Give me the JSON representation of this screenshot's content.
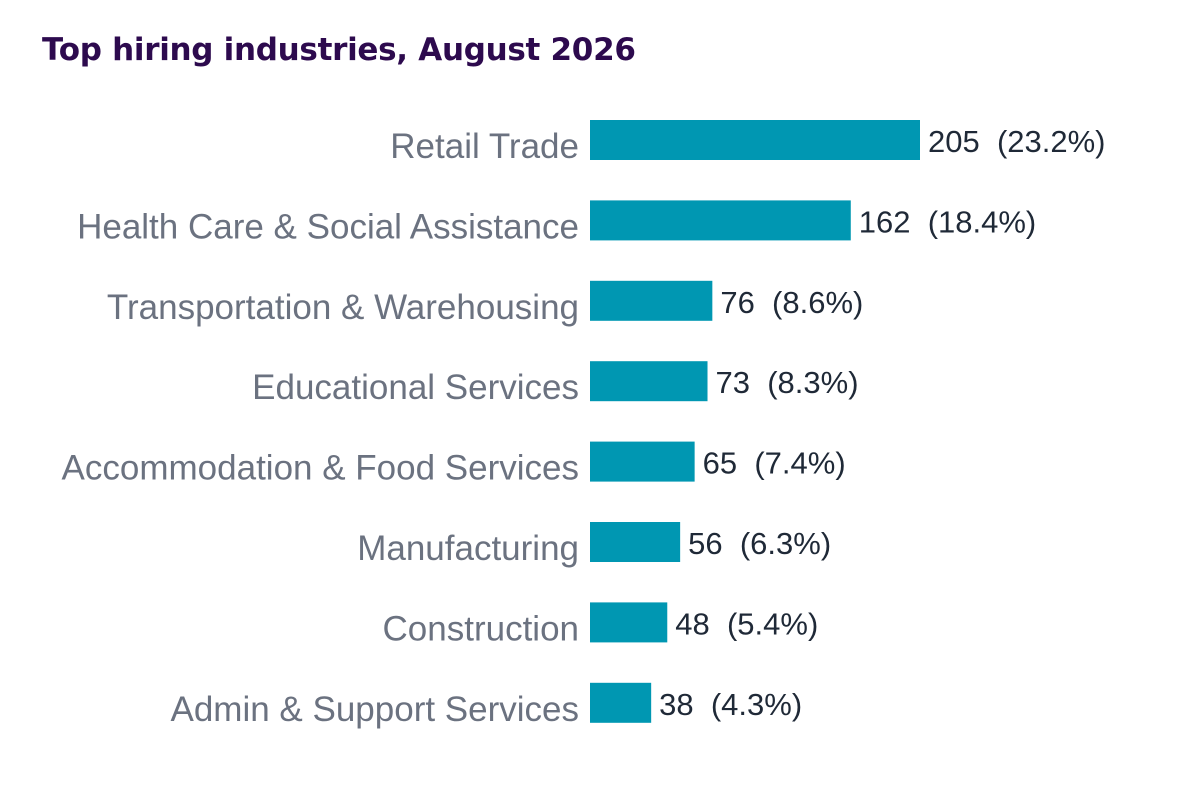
{
  "chart_data": {
    "type": "bar",
    "orientation": "horizontal",
    "title": "Top hiring industries, August 2026",
    "categories": [
      "Retail Trade",
      "Health Care & Social Assistance",
      "Transportation & Warehousing",
      "Educational Services",
      "Accommodation & Food Services",
      "Manufacturing",
      "Construction",
      "Admin & Support Services"
    ],
    "values": [
      205,
      162,
      76,
      73,
      65,
      56,
      48,
      38
    ],
    "value_labels": [
      "205  (23.2%)",
      "162  (18.4%)",
      "76  (8.6%)",
      "73  (8.3%)",
      "65  (7.4%)",
      "56  (6.3%)",
      "48  (5.4%)",
      "38  (4.3%)"
    ],
    "percentages": [
      23.2,
      18.4,
      8.6,
      8.3,
      7.4,
      6.3,
      5.4,
      4.3
    ],
    "bar_color": "#0097b2",
    "title_color": "#2d0a4e",
    "grid": false,
    "legend": false
  }
}
